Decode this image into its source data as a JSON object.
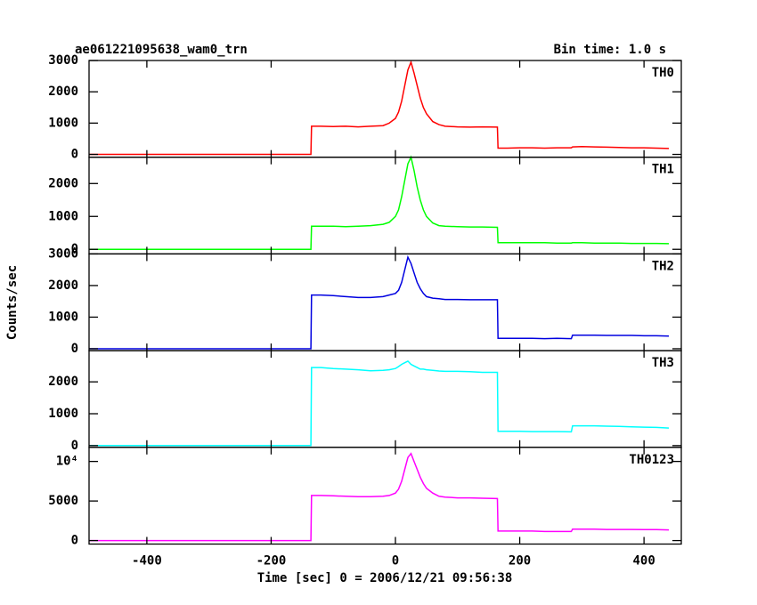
{
  "figure": {
    "title": "ae061221095638_wam0_trn",
    "bin_time": "Bin time: 1.0 s",
    "ylabel": "Counts/sec",
    "xlabel": "Time [sec] 0 = 2006/12/21 09:56:38"
  },
  "chart_data": [
    {
      "type": "line",
      "x": [
        -493,
        -136,
        -135,
        -120,
        -100,
        -80,
        -60,
        -40,
        -20,
        -10,
        0,
        5,
        10,
        15,
        20,
        25,
        30,
        35,
        40,
        45,
        50,
        60,
        70,
        80,
        100,
        120,
        140,
        164,
        165,
        180,
        200,
        220,
        240,
        260,
        283,
        285,
        300,
        320,
        340,
        360,
        380,
        400,
        420,
        440
      ],
      "series": [
        {
          "name": "TH0",
          "color": "#ff0000",
          "values": [
            0,
            0,
            900,
            900,
            890,
            900,
            880,
            900,
            920,
            1000,
            1150,
            1350,
            1700,
            2200,
            2700,
            2950,
            2600,
            2200,
            1800,
            1500,
            1300,
            1050,
            950,
            900,
            880,
            870,
            880,
            870,
            200,
            200,
            210,
            210,
            200,
            210,
            210,
            240,
            250,
            240,
            230,
            220,
            210,
            210,
            200,
            190
          ]
        }
      ],
      "xlim": [
        -493,
        460
      ],
      "xticks": [
        -400,
        -200,
        0,
        200,
        400
      ],
      "ylim": [
        -90,
        3000
      ],
      "yticks": [
        0,
        1000,
        2000,
        3000
      ]
    },
    {
      "type": "line",
      "x": [
        -493,
        -136,
        -135,
        -120,
        -100,
        -80,
        -60,
        -40,
        -20,
        -10,
        0,
        5,
        10,
        15,
        20,
        25,
        30,
        35,
        40,
        45,
        50,
        60,
        70,
        80,
        100,
        120,
        140,
        164,
        165,
        180,
        200,
        220,
        240,
        260,
        283,
        285,
        300,
        320,
        340,
        360,
        380,
        400,
        420,
        440
      ],
      "series": [
        {
          "name": "TH1",
          "color": "#00ff00",
          "values": [
            0,
            0,
            700,
            700,
            700,
            690,
            700,
            720,
            760,
            820,
            1000,
            1200,
            1600,
            2100,
            2600,
            2800,
            2400,
            1900,
            1500,
            1200,
            1000,
            800,
            720,
            700,
            690,
            680,
            680,
            670,
            200,
            200,
            200,
            200,
            200,
            190,
            190,
            200,
            200,
            190,
            190,
            190,
            180,
            180,
            180,
            170
          ]
        }
      ],
      "xlim": [
        -493,
        460
      ],
      "xticks": [
        -400,
        -200,
        0,
        200,
        400
      ],
      "ylim": [
        -140,
        2800
      ],
      "yticks": [
        0,
        1000,
        2000
      ]
    },
    {
      "type": "line",
      "x": [
        -493,
        -136,
        -135,
        -120,
        -100,
        -80,
        -60,
        -40,
        -20,
        -10,
        0,
        5,
        10,
        15,
        20,
        25,
        30,
        35,
        40,
        45,
        50,
        60,
        70,
        80,
        100,
        120,
        140,
        164,
        165,
        180,
        200,
        220,
        240,
        260,
        283,
        285,
        300,
        320,
        340,
        360,
        380,
        400,
        420,
        440
      ],
      "series": [
        {
          "name": "TH2",
          "color": "#0000e0",
          "values": [
            0,
            0,
            1700,
            1700,
            1680,
            1650,
            1620,
            1620,
            1650,
            1700,
            1750,
            1850,
            2100,
            2500,
            2900,
            2700,
            2400,
            2100,
            1900,
            1750,
            1650,
            1600,
            1580,
            1560,
            1560,
            1550,
            1550,
            1550,
            330,
            330,
            330,
            330,
            320,
            330,
            320,
            430,
            430,
            430,
            420,
            420,
            420,
            410,
            410,
            400
          ]
        }
      ],
      "xlim": [
        -493,
        460
      ],
      "xticks": [
        -400,
        -200,
        0,
        200,
        400
      ],
      "ylim": [
        -60,
        3000
      ],
      "yticks": [
        0,
        1000,
        2000,
        3000
      ]
    },
    {
      "type": "line",
      "x": [
        -493,
        -136,
        -135,
        -120,
        -100,
        -80,
        -60,
        -40,
        -20,
        -10,
        0,
        5,
        10,
        15,
        20,
        25,
        30,
        35,
        40,
        45,
        50,
        60,
        70,
        80,
        100,
        120,
        140,
        164,
        165,
        180,
        200,
        220,
        240,
        260,
        283,
        285,
        300,
        320,
        340,
        360,
        380,
        400,
        420,
        440
      ],
      "series": [
        {
          "name": "TH3",
          "color": "#00ffff",
          "values": [
            0,
            0,
            2450,
            2450,
            2420,
            2400,
            2380,
            2350,
            2360,
            2380,
            2420,
            2480,
            2550,
            2600,
            2650,
            2550,
            2500,
            2450,
            2400,
            2400,
            2380,
            2360,
            2340,
            2330,
            2330,
            2320,
            2300,
            2300,
            450,
            450,
            450,
            440,
            440,
            440,
            430,
            620,
            620,
            620,
            610,
            600,
            590,
            580,
            570,
            550
          ]
        }
      ],
      "xlim": [
        -493,
        460
      ],
      "xticks": [
        -400,
        -200,
        0,
        200,
        400
      ],
      "ylim": [
        -55,
        2980
      ],
      "yticks": [
        0,
        1000,
        2000
      ]
    },
    {
      "type": "line",
      "x": [
        -493,
        -136,
        -135,
        -120,
        -100,
        -80,
        -60,
        -40,
        -20,
        -10,
        0,
        5,
        10,
        15,
        20,
        25,
        30,
        35,
        40,
        45,
        50,
        60,
        70,
        80,
        100,
        120,
        140,
        164,
        165,
        180,
        200,
        220,
        240,
        260,
        283,
        285,
        300,
        320,
        340,
        360,
        380,
        400,
        420,
        440
      ],
      "series": [
        {
          "name": "TH0123",
          "color": "#ff00ff",
          "values": [
            0,
            0,
            5700,
            5700,
            5650,
            5600,
            5550,
            5550,
            5600,
            5700,
            6000,
            6500,
            7500,
            9000,
            10500,
            11000,
            10000,
            9000,
            8000,
            7200,
            6600,
            6000,
            5600,
            5500,
            5400,
            5400,
            5350,
            5300,
            1200,
            1200,
            1200,
            1200,
            1150,
            1150,
            1150,
            1450,
            1450,
            1450,
            1400,
            1400,
            1400,
            1380,
            1380,
            1350
          ]
        }
      ],
      "xlim": [
        -493,
        460
      ],
      "xticks": [
        -400,
        -200,
        0,
        200,
        400
      ],
      "ylim": [
        -440,
        11780
      ],
      "yticks": [
        0,
        5000,
        {
          "value": 10000,
          "label": "10⁴"
        }
      ]
    }
  ]
}
